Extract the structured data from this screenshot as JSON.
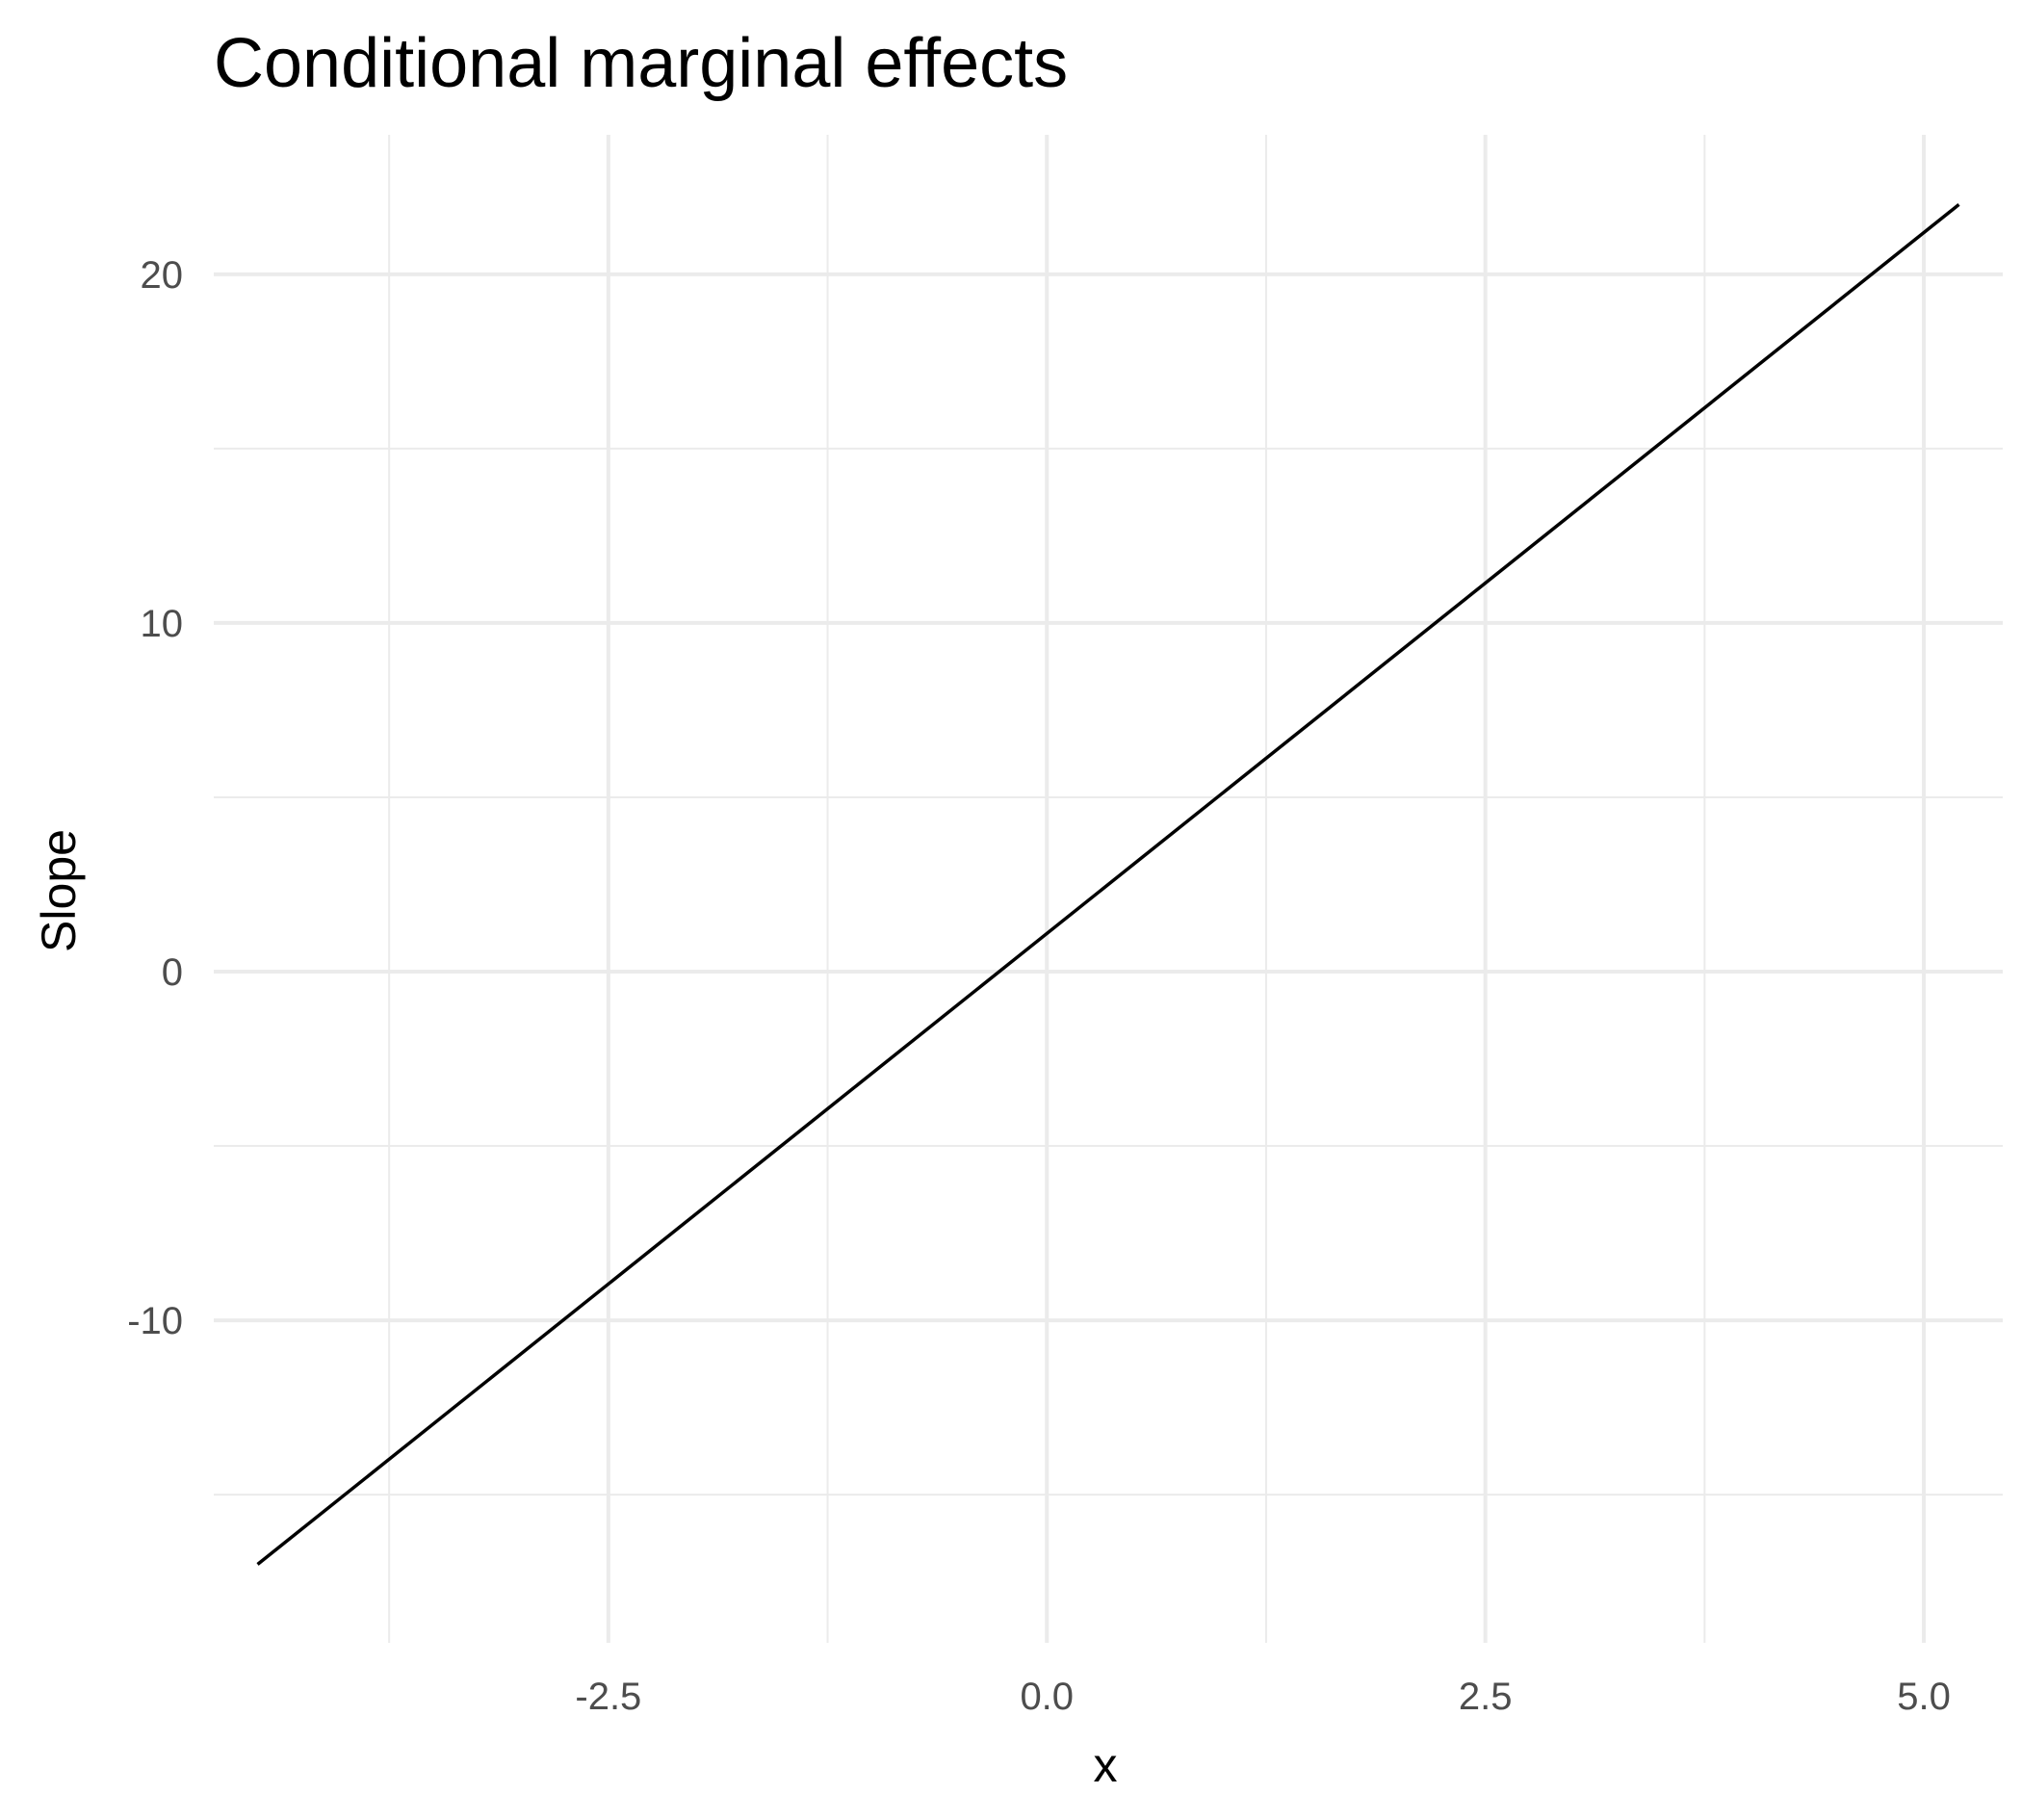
{
  "chart_data": {
    "type": "line",
    "title": "Conditional marginal effects",
    "xlabel": "x",
    "ylabel": "Slope",
    "xlim": [
      -4.75,
      5.45
    ],
    "ylim": [
      -19.25,
      24.0
    ],
    "x_ticks": [
      -2.5,
      0.0,
      2.5,
      5.0
    ],
    "x_tick_labels": [
      "-2.5",
      "0.0",
      "2.5",
      "5.0"
    ],
    "x_minor_ticks": [
      -3.75,
      -1.25,
      1.25,
      3.75
    ],
    "y_ticks": [
      -10,
      0,
      10,
      20
    ],
    "y_tick_labels": [
      "-10",
      "0",
      "10",
      "20"
    ],
    "y_minor_ticks": [
      -15,
      -5,
      5,
      15
    ],
    "grid": true,
    "legend": "none",
    "series": [
      {
        "color": "#000000",
        "x": [
          -4.5,
          5.2
        ],
        "y": [
          -17.0,
          22.0
        ]
      }
    ]
  }
}
